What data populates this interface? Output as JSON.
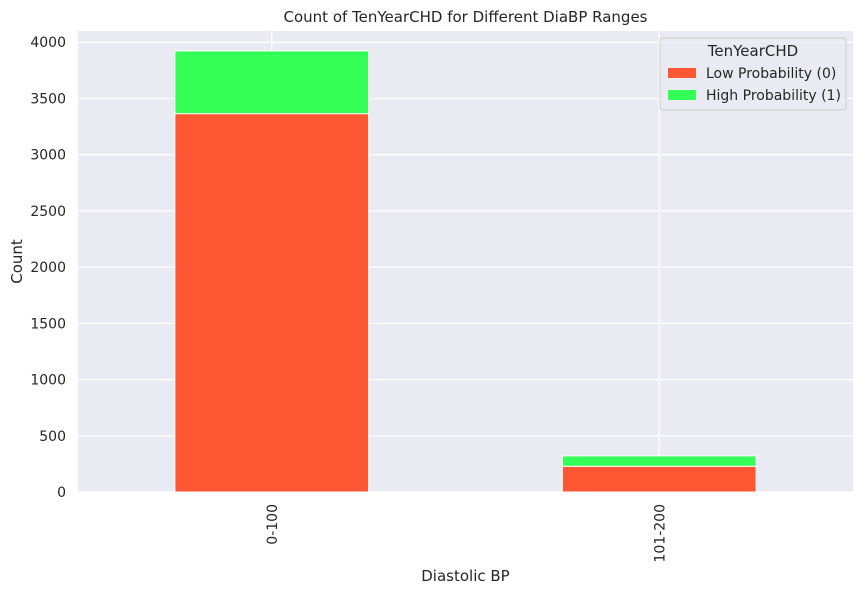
{
  "chart_data": {
    "type": "bar",
    "stacked": true,
    "title": "Count of TenYearCHD for Different DiaBP Ranges",
    "xlabel": "Diastolic BP",
    "ylabel": "Count",
    "categories": [
      "0-100",
      "101-200"
    ],
    "series": [
      {
        "name": "Low Probability (0)",
        "values": [
          3365,
          229
        ],
        "color": "#ff5733"
      },
      {
        "name": "High Probability (1)",
        "values": [
          558,
          92
        ],
        "color": "#33ff57"
      }
    ],
    "ylim": [
      0,
      4100
    ],
    "yticks": [
      0,
      500,
      1000,
      1500,
      2000,
      2500,
      3000,
      3500,
      4000
    ],
    "grid": true,
    "legend": {
      "title": "TenYearCHD",
      "placement": "top-right"
    },
    "background": "#eaeaf2"
  }
}
